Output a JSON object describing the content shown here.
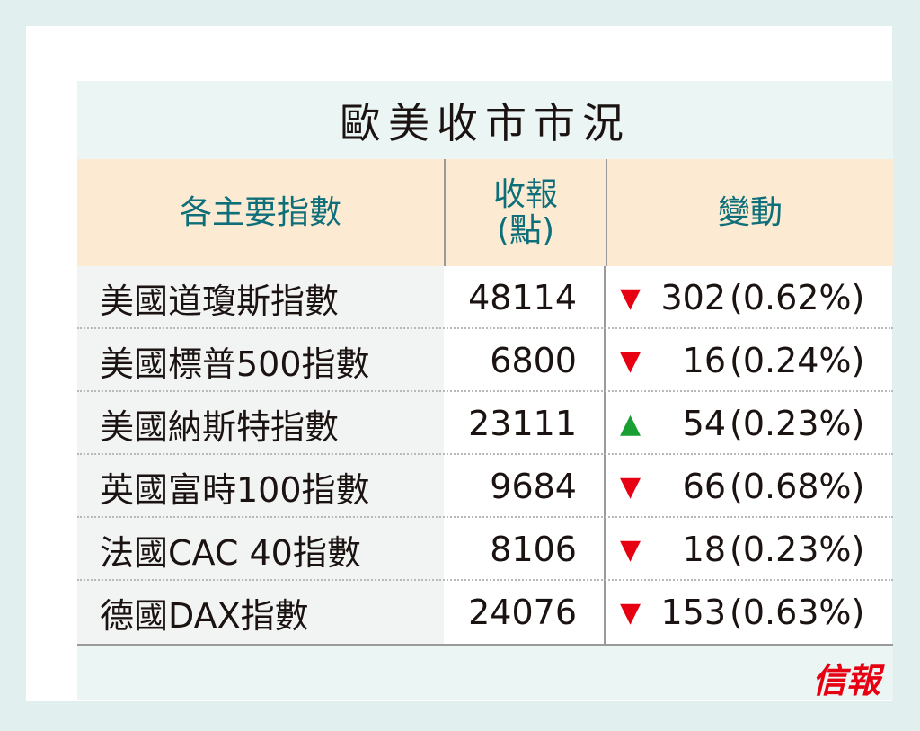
{
  "title": "歐美收市市況",
  "headers": {
    "index": "各主要指數",
    "close": "收報\n(點)",
    "change": "變動"
  },
  "rows": [
    {
      "name": "美國道瓊斯指數",
      "close": "48114",
      "dir": "down",
      "change": "302",
      "pct": "(0.62%)"
    },
    {
      "name": "美國標普500指數",
      "close": "6800",
      "dir": "down",
      "change": "16",
      "pct": "(0.24%)"
    },
    {
      "name": "美國納斯特指數",
      "close": "23111",
      "dir": "up",
      "change": "54",
      "pct": "(0.23%)"
    },
    {
      "name": "英國富時100指數",
      "close": "9684",
      "dir": "down",
      "change": "66",
      "pct": "(0.68%)"
    },
    {
      "name": "法國CAC 40指數",
      "close": "8106",
      "dir": "down",
      "change": "18",
      "pct": "(0.23%)"
    },
    {
      "name": "德國DAX指數",
      "close": "24076",
      "dir": "down",
      "change": "153",
      "pct": "(0.63%)"
    }
  ],
  "logo": "信報",
  "colors": {
    "down": "#e60012",
    "up": "#1aa032",
    "header_text": "#0e6f7a"
  }
}
